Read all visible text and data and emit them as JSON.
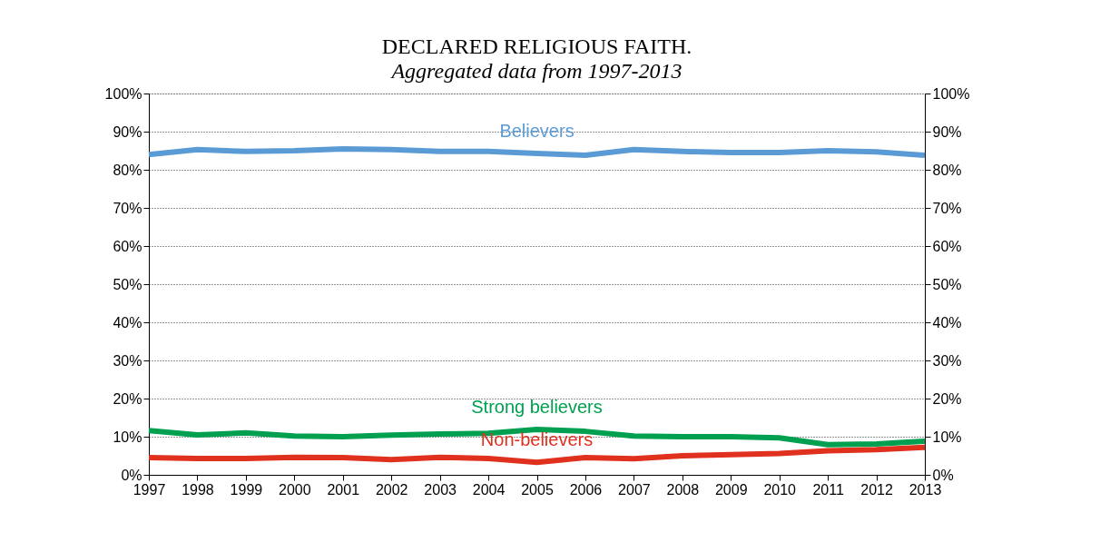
{
  "chart_data": {
    "type": "line",
    "title": "DECLARED RELIGIOUS FAITH.",
    "subtitle": "Aggregated data from 1997-2013",
    "x": [
      1997,
      1998,
      1999,
      2000,
      2001,
      2002,
      2003,
      2004,
      2005,
      2006,
      2007,
      2008,
      2009,
      2010,
      2011,
      2012,
      2013
    ],
    "xlim": [
      1997,
      2013
    ],
    "xticks": [
      1997,
      1998,
      1999,
      2000,
      2001,
      2002,
      2003,
      2004,
      2005,
      2006,
      2007,
      2008,
      2009,
      2010,
      2011,
      2012,
      2013
    ],
    "series": [
      {
        "name": "Believers",
        "color": "#5b9bd5",
        "values": [
          84.0,
          85.3,
          84.8,
          85.0,
          85.5,
          85.3,
          84.8,
          84.8,
          84.3,
          83.8,
          85.3,
          84.8,
          84.5,
          84.5,
          85.0,
          84.7,
          83.8
        ]
      },
      {
        "name": "Strong believers",
        "color": "#00a050",
        "values": [
          11.6,
          10.5,
          11.0,
          10.2,
          10.0,
          10.4,
          10.7,
          10.9,
          11.9,
          11.4,
          10.2,
          10.0,
          10.0,
          9.7,
          7.9,
          8.1,
          8.8
        ]
      },
      {
        "name": "Non-believers",
        "color": "#e0301e",
        "values": [
          4.5,
          4.3,
          4.3,
          4.6,
          4.5,
          4.0,
          4.6,
          4.3,
          3.3,
          4.5,
          4.2,
          5.0,
          5.3,
          5.6,
          6.3,
          6.6,
          7.2
        ]
      }
    ],
    "ylim": [
      0,
      100
    ],
    "yticks": [
      {
        "value": 0,
        "label": "0%"
      },
      {
        "value": 10,
        "label": "10%"
      },
      {
        "value": 20,
        "label": "20%"
      },
      {
        "value": 30,
        "label": "30%"
      },
      {
        "value": 40,
        "label": "40%"
      },
      {
        "value": 50,
        "label": "50%"
      },
      {
        "value": 60,
        "label": "60%"
      },
      {
        "value": 70,
        "label": "70%"
      },
      {
        "value": 80,
        "label": "80%"
      },
      {
        "value": 90,
        "label": "90%"
      },
      {
        "value": 100,
        "label": "100%"
      }
    ],
    "y2lim": [
      0,
      100
    ],
    "y2ticks": [
      {
        "value": 0,
        "label": "0%"
      },
      {
        "value": 10,
        "label": "10%"
      },
      {
        "value": 20,
        "label": "20%"
      },
      {
        "value": 30,
        "label": "30%"
      },
      {
        "value": 40,
        "label": "40%"
      },
      {
        "value": 50,
        "label": "50%"
      },
      {
        "value": 60,
        "label": "60%"
      },
      {
        "value": 70,
        "label": "70%"
      },
      {
        "value": 80,
        "label": "80%"
      },
      {
        "value": 90,
        "label": "90%"
      },
      {
        "value": 100,
        "label": "100%"
      }
    ],
    "grid": "y",
    "line_style": "solid",
    "marker": "none"
  }
}
